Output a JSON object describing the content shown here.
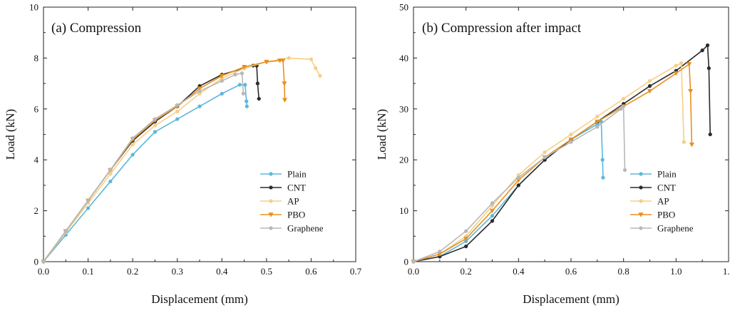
{
  "chart_data": [
    {
      "type": "line",
      "title": "(a) Compression",
      "xlabel": "Displacement (mm)",
      "ylabel": "Load (kN)",
      "xlim": [
        0,
        0.7
      ],
      "ylim": [
        0,
        10
      ],
      "xticks": [
        0.0,
        0.1,
        0.2,
        0.3,
        0.4,
        0.5,
        0.6,
        0.7
      ],
      "xtick_labels": [
        "0.0",
        "0.1",
        "0.2",
        "0.3",
        "0.4",
        "0.5",
        "0.6",
        "0.7"
      ],
      "yticks": [
        0,
        2,
        4,
        6,
        8,
        10
      ],
      "ytick_labels": [
        "0",
        "2",
        "4",
        "6",
        "8",
        "10"
      ],
      "grid": false,
      "legend_position": "bottom-right",
      "series": [
        {
          "name": "Plain",
          "color": "#5bb8dc",
          "marker": "circle",
          "x": [
            0,
            0.05,
            0.1,
            0.15,
            0.2,
            0.25,
            0.3,
            0.35,
            0.4,
            0.44,
            0.452,
            0.455,
            0.456
          ],
          "y": [
            0,
            1.05,
            2.1,
            3.15,
            4.2,
            5.1,
            5.6,
            6.1,
            6.6,
            6.95,
            6.95,
            6.3,
            6.1
          ]
        },
        {
          "name": "CNT",
          "color": "#2b2b2b",
          "marker": "circle",
          "x": [
            0,
            0.05,
            0.1,
            0.15,
            0.2,
            0.25,
            0.3,
            0.35,
            0.4,
            0.45,
            0.47,
            0.478,
            0.48,
            0.483
          ],
          "y": [
            0,
            1.2,
            2.4,
            3.6,
            4.75,
            5.5,
            6.1,
            6.9,
            7.35,
            7.6,
            7.7,
            7.7,
            7.0,
            6.4
          ]
        },
        {
          "name": "AP",
          "color": "#f6cf85",
          "marker": "circle",
          "x": [
            0,
            0.05,
            0.1,
            0.15,
            0.2,
            0.25,
            0.3,
            0.35,
            0.4,
            0.45,
            0.5,
            0.55,
            0.6,
            0.61,
            0.62
          ],
          "y": [
            0,
            1.15,
            2.3,
            3.45,
            4.6,
            5.35,
            5.9,
            6.6,
            7.2,
            7.6,
            7.85,
            8.0,
            7.95,
            7.6,
            7.3
          ]
        },
        {
          "name": "PBO",
          "color": "#e8901f",
          "marker": "triangle",
          "x": [
            0,
            0.05,
            0.1,
            0.15,
            0.2,
            0.25,
            0.3,
            0.35,
            0.4,
            0.45,
            0.5,
            0.53,
            0.537,
            0.54,
            0.541
          ],
          "y": [
            0,
            1.2,
            2.4,
            3.6,
            4.8,
            5.55,
            6.1,
            6.8,
            7.3,
            7.65,
            7.85,
            7.9,
            7.9,
            7.0,
            6.35
          ]
        },
        {
          "name": "Graphene",
          "color": "#b8b8b8",
          "marker": "circle",
          "x": [
            0,
            0.05,
            0.1,
            0.15,
            0.2,
            0.25,
            0.3,
            0.35,
            0.4,
            0.43,
            0.445,
            0.448
          ],
          "y": [
            0,
            1.2,
            2.4,
            3.6,
            4.85,
            5.6,
            6.15,
            6.7,
            7.1,
            7.35,
            7.4,
            6.6
          ]
        }
      ]
    },
    {
      "type": "line",
      "title": "(b) Compression after impact",
      "xlabel": "Displacement (mm)",
      "ylabel": "Load (kN)",
      "xlim": [
        0,
        1.2
      ],
      "ylim": [
        0,
        50
      ],
      "xticks": [
        0.0,
        0.2,
        0.4,
        0.6,
        0.8,
        1.0,
        1.2
      ],
      "xtick_labels": [
        "0.0",
        "0.2",
        "0.4",
        "0.6",
        "0.8",
        "1.0",
        "1.2"
      ],
      "yticks": [
        0,
        10,
        20,
        30,
        40,
        50
      ],
      "ytick_labels": [
        "0",
        "10",
        "20",
        "30",
        "40",
        "50"
      ],
      "grid": false,
      "legend_position": "bottom-right",
      "series": [
        {
          "name": "Plain",
          "color": "#5bb8dc",
          "marker": "circle",
          "x": [
            0,
            0.1,
            0.2,
            0.3,
            0.4,
            0.5,
            0.6,
            0.7,
            0.715,
            0.72,
            0.722
          ],
          "y": [
            0,
            1,
            4,
            9,
            15,
            20,
            24,
            27,
            27.5,
            20,
            16.5
          ]
        },
        {
          "name": "CNT",
          "color": "#2b2b2b",
          "marker": "circle",
          "x": [
            0,
            0.1,
            0.2,
            0.3,
            0.4,
            0.5,
            0.6,
            0.7,
            0.8,
            0.9,
            1.0,
            1.1,
            1.12,
            1.125,
            1.13
          ],
          "y": [
            0,
            1,
            3,
            8,
            15,
            20,
            24,
            27.5,
            31,
            34.5,
            37.5,
            41.5,
            42.5,
            38,
            25
          ]
        },
        {
          "name": "AP",
          "color": "#f6cf85",
          "marker": "circle",
          "x": [
            0,
            0.1,
            0.2,
            0.3,
            0.4,
            0.5,
            0.6,
            0.7,
            0.8,
            0.9,
            1.0,
            1.02,
            1.03
          ],
          "y": [
            0,
            1.5,
            5,
            11,
            17,
            21.5,
            25,
            28.5,
            32,
            35.5,
            38.5,
            39,
            23.5
          ]
        },
        {
          "name": "PBO",
          "color": "#e8901f",
          "marker": "triangle",
          "x": [
            0,
            0.1,
            0.2,
            0.3,
            0.4,
            0.5,
            0.6,
            0.7,
            0.8,
            0.9,
            1.0,
            1.05,
            1.055,
            1.06
          ],
          "y": [
            0,
            1.5,
            4.5,
            10,
            16,
            20.5,
            24,
            27.5,
            30.5,
            33.5,
            37,
            38.8,
            33.5,
            23
          ]
        },
        {
          "name": "Graphene",
          "color": "#b8b8b8",
          "marker": "circle",
          "x": [
            0,
            0.1,
            0.2,
            0.3,
            0.4,
            0.5,
            0.6,
            0.7,
            0.79,
            0.8,
            0.805
          ],
          "y": [
            0,
            2,
            6,
            11.5,
            16.5,
            20.5,
            23.5,
            26.5,
            30,
            30.5,
            18
          ]
        }
      ]
    }
  ]
}
